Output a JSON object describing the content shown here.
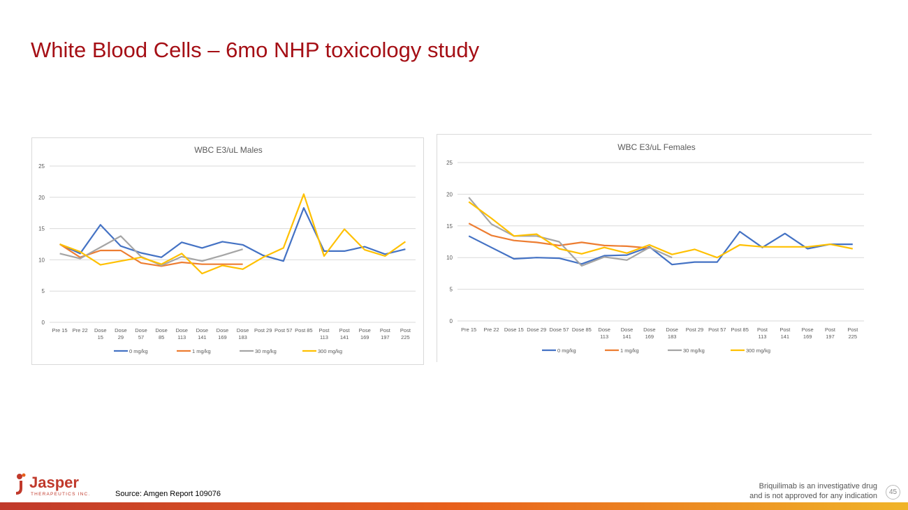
{
  "slide": {
    "title": "White Blood Cells – 6mo NHP toxicology study",
    "source": "Source: Amgen Report 109076",
    "disclaimer_line1": "Briquilimab  is an investigative drug",
    "disclaimer_line2": "and is not approved for any indication",
    "page_number": "45",
    "logo_name": "Jasper",
    "logo_sub": "THERAPEUTICS INC.",
    "colors": {
      "title": "#a50f15",
      "logo": "#c0392b"
    }
  },
  "chart_data": [
    {
      "type": "line",
      "title": "WBC E3/uL Males",
      "categories": [
        [
          "Pre 15"
        ],
        [
          "Pre 22"
        ],
        [
          "Dose",
          "15"
        ],
        [
          "Dose",
          "29"
        ],
        [
          "Dose",
          "57"
        ],
        [
          "Dose",
          "85"
        ],
        [
          "Dose",
          "113"
        ],
        [
          "Dose",
          "141"
        ],
        [
          "Dose",
          "169"
        ],
        [
          "Dose",
          "183"
        ],
        [
          "Post 29"
        ],
        [
          "Post 57"
        ],
        [
          "Post 85"
        ],
        [
          "Post",
          "113"
        ],
        [
          "Post",
          "141"
        ],
        [
          "Pose",
          "169"
        ],
        [
          "Post",
          "197"
        ],
        [
          "Post",
          "225"
        ]
      ],
      "ylim": [
        0,
        25
      ],
      "yticks": [
        0,
        5,
        10,
        15,
        20,
        25
      ],
      "grid": true,
      "legend": "bottom",
      "series": [
        {
          "name": "0 mg/kg",
          "color": "#4472c4",
          "values": [
            12.5,
            11.0,
            15.6,
            12.2,
            11.1,
            10.4,
            12.8,
            11.9,
            12.9,
            12.4,
            10.7,
            9.8,
            18.3,
            11.4,
            11.4,
            12.1,
            10.9,
            11.7
          ]
        },
        {
          "name": "1 mg/kg",
          "color": "#ed7d31",
          "values": [
            12.5,
            10.4,
            11.5,
            11.5,
            9.5,
            9.0,
            9.6,
            9.3,
            9.3,
            9.3,
            null,
            null,
            null,
            null,
            null,
            null,
            null,
            null
          ]
        },
        {
          "name": "30 mg/kg",
          "color": "#a5a5a5",
          "values": [
            11.0,
            10.2,
            12.0,
            13.8,
            10.5,
            9.1,
            10.5,
            9.8,
            10.7,
            11.7,
            null,
            null,
            null,
            null,
            null,
            null,
            null,
            null
          ]
        },
        {
          "name": "300 mg/kg",
          "color": "#ffc000",
          "values": [
            12.5,
            11.3,
            9.2,
            9.8,
            10.4,
            9.3,
            11.0,
            7.8,
            9.1,
            8.5,
            10.4,
            11.9,
            20.5,
            10.6,
            14.9,
            11.6,
            10.6,
            12.9
          ]
        }
      ]
    },
    {
      "type": "line",
      "title": "WBC E3/uL Females",
      "categories": [
        [
          "Pre 15"
        ],
        [
          "Pre 22"
        ],
        [
          "Dose 15"
        ],
        [
          "Dose 29"
        ],
        [
          "Dose 57"
        ],
        [
          "Dose 85"
        ],
        [
          "Dose",
          "113"
        ],
        [
          "Dose",
          "141"
        ],
        [
          "Dose",
          "169"
        ],
        [
          "Dose",
          "183"
        ],
        [
          "Post 29"
        ],
        [
          "Post 57"
        ],
        [
          "Post 85"
        ],
        [
          "Post",
          "113"
        ],
        [
          "Post",
          "141"
        ],
        [
          "Pose",
          "169"
        ],
        [
          "Post",
          "197"
        ],
        [
          "Post",
          "225"
        ]
      ],
      "ylim": [
        0,
        25
      ],
      "yticks": [
        0,
        5,
        10,
        15,
        20,
        25
      ],
      "grid": true,
      "legend": "bottom",
      "series": [
        {
          "name": "0 mg/kg",
          "color": "#4472c4",
          "values": [
            13.4,
            11.6,
            9.8,
            10.0,
            9.9,
            9.0,
            10.3,
            10.4,
            11.7,
            8.9,
            9.3,
            9.3,
            14.1,
            11.6,
            13.8,
            11.4,
            12.1,
            12.1
          ]
        },
        {
          "name": "1 mg/kg",
          "color": "#ed7d31",
          "values": [
            15.4,
            13.5,
            12.7,
            12.4,
            11.9,
            12.4,
            11.9,
            11.8,
            11.5,
            null,
            null,
            null,
            null,
            null,
            null,
            null,
            null,
            null
          ]
        },
        {
          "name": "30 mg/kg",
          "color": "#a5a5a5",
          "values": [
            19.5,
            15.3,
            13.4,
            13.4,
            12.5,
            8.7,
            10.1,
            9.6,
            11.6,
            10.0,
            null,
            null,
            null,
            null,
            null,
            null,
            null,
            null
          ]
        },
        {
          "name": "300 mg/kg",
          "color": "#ffc000",
          "values": [
            18.8,
            16.2,
            13.4,
            13.7,
            11.4,
            10.6,
            11.6,
            10.7,
            12.0,
            10.5,
            11.3,
            10.0,
            12.0,
            11.7,
            11.7,
            11.7,
            12.1,
            11.4
          ]
        }
      ]
    }
  ]
}
